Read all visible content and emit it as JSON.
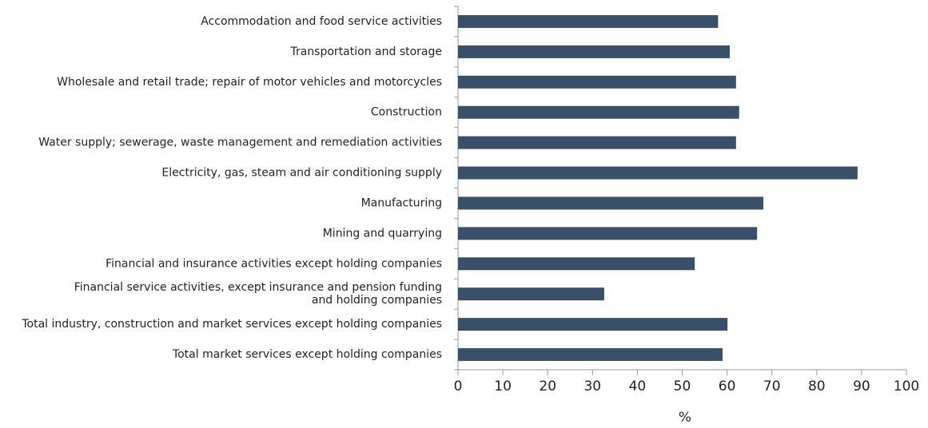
{
  "chart_data": {
    "type": "bar",
    "orientation": "horizontal",
    "categories": [
      "Accommodation and food service activities",
      "Transportation and storage",
      "Wholesale and retail trade; repair of motor vehicles and motorcycles",
      "Construction",
      "Water supply; sewerage, waste management and remediation activities",
      "Electricity, gas, steam and air conditioning supply",
      "Manufacturing",
      "Mining and quarrying",
      "Financial and insurance activities except holding companies",
      "Financial service activities, except insurance and pension funding\nand holding companies",
      "Total industry, construction and market services except holding companies",
      "Total market services except holding companies"
    ],
    "values": [
      58,
      60.6,
      62,
      62.7,
      62,
      89.1,
      68.1,
      66.7,
      52.8,
      32.6,
      60.1,
      59
    ],
    "color": "#394f6a",
    "xlabel": "%",
    "xlim": [
      0,
      100
    ],
    "xticks": [
      0,
      10,
      20,
      30,
      40,
      50,
      60,
      70,
      80,
      90,
      100
    ],
    "grid": false
  }
}
